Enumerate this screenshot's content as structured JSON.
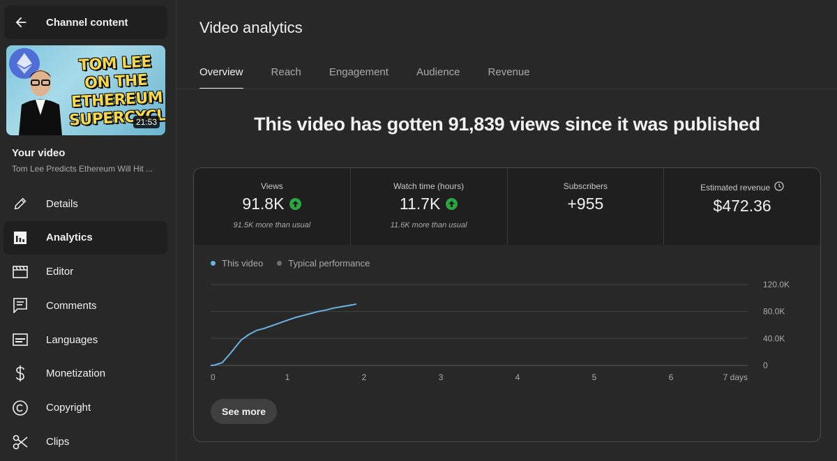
{
  "sidebar": {
    "header_title": "Channel content",
    "thumbnail": {
      "text_lines": [
        "TOM LEE",
        "ON THE",
        "ETHEREUM",
        "SUPERCYCLE"
      ],
      "duration": "21:53"
    },
    "your_video_label": "Your video",
    "video_title": "Tom Lee Predicts Ethereum Will Hit ...",
    "items": [
      {
        "label": "Details",
        "icon": "pencil-icon",
        "active": false
      },
      {
        "label": "Analytics",
        "icon": "analytics-icon",
        "active": true
      },
      {
        "label": "Editor",
        "icon": "clapperboard-icon",
        "active": false
      },
      {
        "label": "Comments",
        "icon": "comment-icon",
        "active": false
      },
      {
        "label": "Languages",
        "icon": "subtitles-icon",
        "active": false
      },
      {
        "label": "Monetization",
        "icon": "dollar-icon",
        "active": false
      },
      {
        "label": "Copyright",
        "icon": "copyright-icon",
        "active": false
      },
      {
        "label": "Clips",
        "icon": "scissors-icon",
        "active": false
      }
    ]
  },
  "main": {
    "title": "Video analytics",
    "tabs": [
      {
        "label": "Overview",
        "active": true
      },
      {
        "label": "Reach",
        "active": false
      },
      {
        "label": "Engagement",
        "active": false
      },
      {
        "label": "Audience",
        "active": false
      },
      {
        "label": "Revenue",
        "active": false
      }
    ],
    "headline": "This video has gotten 91,839 views since it was published",
    "metrics": [
      {
        "label": "Views",
        "value": "91.8K",
        "up": true,
        "sub": "91.5K more than usual"
      },
      {
        "label": "Watch time (hours)",
        "value": "11.7K",
        "up": true,
        "sub": "11.6K more than usual"
      },
      {
        "label": "Subscribers",
        "value": "+955",
        "up": false,
        "sub": ""
      },
      {
        "label": "Estimated revenue",
        "value": "$472.36",
        "up": false,
        "sub": "",
        "clock_icon": true
      }
    ],
    "legend": [
      {
        "label": "This video",
        "color": "#6ab4e3"
      },
      {
        "label": "Typical performance",
        "color": "#717171"
      }
    ],
    "see_more": "See more"
  },
  "colors": {
    "background": "#282828",
    "panel": "#1f1f1f",
    "line": "#6ab4e3",
    "up": "#2ba640"
  },
  "chart_data": {
    "type": "line",
    "x_ticks": [
      "0",
      "1",
      "2",
      "3",
      "4",
      "5",
      "6",
      "7 days"
    ],
    "y_ticks": [
      "0",
      "40.0K",
      "80.0K",
      "120.0K"
    ],
    "xlim": [
      0,
      7
    ],
    "ylim": [
      0,
      120000
    ],
    "series": [
      {
        "name": "This video",
        "x": [
          0,
          0.05,
          0.15,
          0.25,
          0.35,
          0.4,
          0.5,
          0.6,
          0.7,
          0.8,
          0.9,
          1.0,
          1.1,
          1.2,
          1.3,
          1.4,
          1.5,
          1.6,
          1.7,
          1.8,
          1.9
        ],
        "y": [
          0,
          500,
          4000,
          17000,
          31000,
          38000,
          46000,
          52000,
          55000,
          59000,
          63000,
          67000,
          71000,
          74000,
          77000,
          80000,
          82000,
          85000,
          87000,
          89000,
          91000
        ]
      }
    ]
  }
}
